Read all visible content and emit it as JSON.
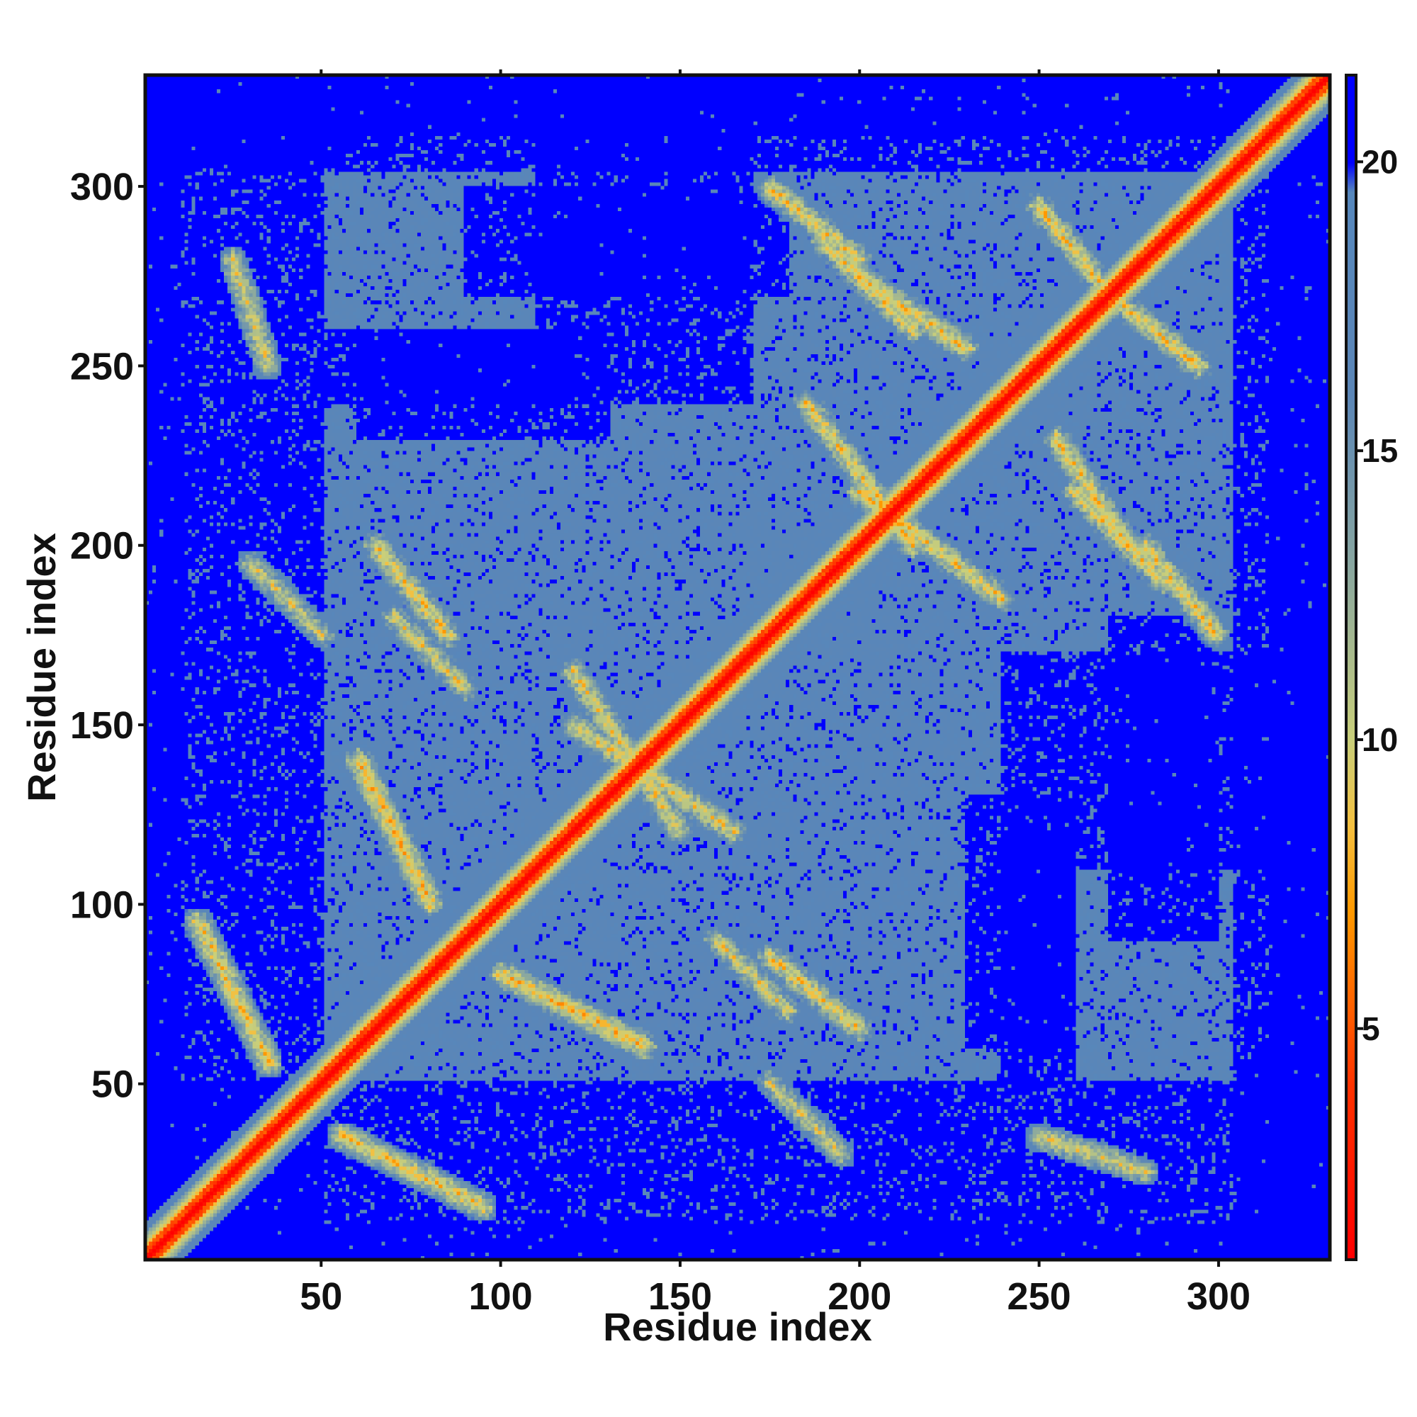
{
  "chart_data": {
    "type": "heatmap",
    "title": "",
    "xlabel": "Residue index",
    "ylabel": "Residue index",
    "xlim": [
      1,
      331
    ],
    "ylim": [
      1,
      331
    ],
    "x_ticks": [
      50,
      100,
      150,
      200,
      250,
      300
    ],
    "y_ticks": [
      50,
      100,
      150,
      200,
      250,
      300
    ],
    "x_tick_labels": [
      "50",
      "100",
      "150",
      "200",
      "250",
      "300"
    ],
    "y_tick_labels": [
      "50",
      "100",
      "150",
      "200",
      "250",
      "300"
    ],
    "matrix_size": 331,
    "symmetric": true,
    "colorbar": {
      "range": [
        1,
        21.5
      ],
      "ticks": [
        5,
        10,
        15,
        20
      ],
      "tick_labels": [
        "5",
        "10",
        "15",
        "20"
      ],
      "color_stops": [
        {
          "value": 1,
          "color": "#ff0000"
        },
        {
          "value": 4,
          "color": "#ff3300"
        },
        {
          "value": 7,
          "color": "#ff9900"
        },
        {
          "value": 8.5,
          "color": "#f4c040"
        },
        {
          "value": 10,
          "color": "#c9cf7a"
        },
        {
          "value": 13,
          "color": "#89a7a0"
        },
        {
          "value": 16,
          "color": "#5b86b7"
        },
        {
          "value": 19.5,
          "color": "#5687bc"
        },
        {
          "value": 20,
          "color": "#0000ff"
        },
        {
          "value": 21.5,
          "color": "#0000ff"
        }
      ]
    },
    "structure": {
      "diagonal_value": 2,
      "near_diagonal_value": 8,
      "background_value": 21,
      "mid_value": 17,
      "contact_bands": [
        {
          "i": [
            55,
            95
          ],
          "j": [
            15,
            35
          ],
          "value": 10
        },
        {
          "i": [
            100,
            140
          ],
          "j": [
            60,
            80
          ],
          "value": 9.5
        },
        {
          "i": [
            175,
            200
          ],
          "j": [
            65,
            85
          ],
          "value": 10
        },
        {
          "i": [
            185,
            215
          ],
          "j": [
            200,
            240
          ],
          "value": 10
        },
        {
          "i": [
            250,
            280
          ],
          "j": [
            25,
            35
          ],
          "value": 11
        },
        {
          "i": [
            255,
            275
          ],
          "j": [
            200,
            230
          ],
          "value": 10
        },
        {
          "i": [
            280,
            300
          ],
          "j": [
            175,
            200
          ],
          "value": 10
        },
        {
          "i": [
            270,
            295
          ],
          "j": [
            250,
            270
          ],
          "value": 10
        },
        {
          "i": [
            120,
            165
          ],
          "j": [
            120,
            150
          ],
          "value": 10.5
        },
        {
          "i": [
            190,
            215
          ],
          "j": [
            260,
            285
          ],
          "value": 10
        },
        {
          "i": [
            70,
            90
          ],
          "j": [
            160,
            180
          ],
          "value": 10.5
        },
        {
          "i": [
            30,
            50
          ],
          "j": [
            175,
            195
          ],
          "value": 11
        }
      ],
      "far_blocks": [
        {
          "i": [
            240,
            260
          ],
          "j": [
            50,
            120
          ],
          "value": 21
        },
        {
          "i": [
            270,
            300
          ],
          "j": [
            90,
            180
          ],
          "value": 21
        },
        {
          "i": [
            60,
            130
          ],
          "j": [
            230,
            260
          ],
          "value": 21
        },
        {
          "i": [
            110,
            170
          ],
          "j": [
            240,
            330
          ],
          "value": 21
        },
        {
          "i": [
            1,
            50
          ],
          "j": [
            1,
            330
          ],
          "value": 21
        },
        {
          "i": [
            1,
            330
          ],
          "j": [
            1,
            10
          ],
          "value": 21
        },
        {
          "i": [
            1,
            330
          ],
          "j": [
            315,
            331
          ],
          "value": 21
        },
        {
          "i": [
            305,
            331
          ],
          "j": [
            1,
            330
          ],
          "value": 21
        }
      ]
    }
  }
}
